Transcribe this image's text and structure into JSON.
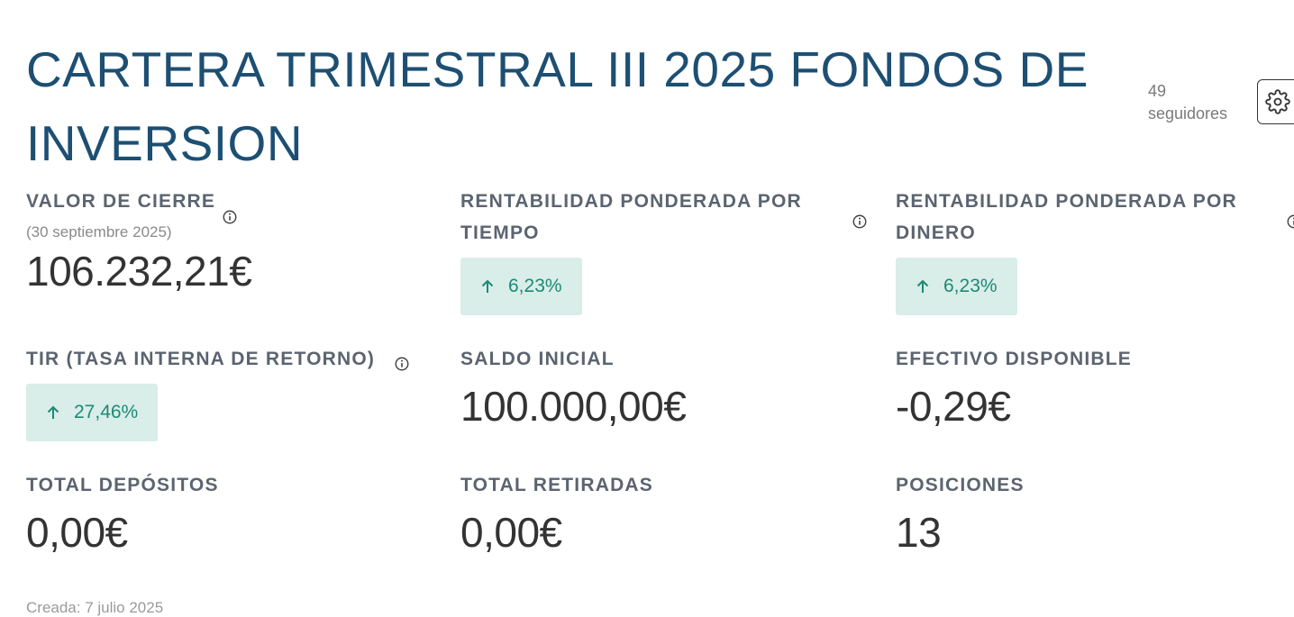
{
  "portfolio": {
    "title": "CARTERA TRIMESTRAL III 2025 FONDOS DE INVERSION",
    "followers_count": "49",
    "followers_label": "seguidores"
  },
  "metrics": {
    "closing_value": {
      "label": "VALOR DE CIERRE",
      "date": "(30 septiembre 2025)",
      "value": "106.232,21€"
    },
    "twr": {
      "label": "RENTABILIDAD PONDERADA POR TIEMPO",
      "value": "6,23%",
      "direction": "up"
    },
    "mwr": {
      "label": "RENTABILIDAD PONDERADA POR DINERO",
      "value": "6,23%",
      "direction": "up"
    },
    "irr": {
      "label": "TIR (TASA INTERNA DE RETORNO)",
      "value": "27,46%",
      "direction": "up"
    },
    "initial_balance": {
      "label": "SALDO INICIAL",
      "value": "100.000,00€"
    },
    "cash_available": {
      "label": "EFECTIVO DISPONIBLE",
      "value": "-0,29€"
    },
    "total_deposits": {
      "label": "TOTAL DEPÓSITOS",
      "value": "0,00€"
    },
    "total_withdrawals": {
      "label": "TOTAL RETIRADAS",
      "value": "0,00€"
    },
    "positions": {
      "label": "POSICIONES",
      "value": "13"
    }
  },
  "footer": {
    "created": "Creada: 7 julio 2025"
  },
  "colors": {
    "title": "#1d4f73",
    "badge_bg": "#d9ede9",
    "badge_text": "#1d8a74",
    "label": "#5b6470",
    "value": "#333333"
  },
  "icons": {
    "info": "info-circle-icon",
    "settings": "gear-icon",
    "arrow": "arrow-up-icon"
  }
}
